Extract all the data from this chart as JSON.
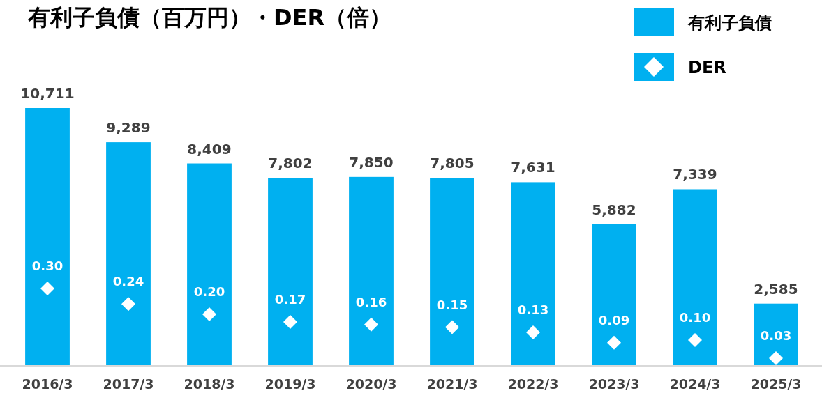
{
  "chart_data": {
    "type": "bar",
    "title": "有利子負債（百万円）・DER（倍）",
    "categories": [
      "2016/3",
      "2017/3",
      "2018/3",
      "2019/3",
      "2020/3",
      "2021/3",
      "2022/3",
      "2023/3",
      "2024/3",
      "2025/3"
    ],
    "series": [
      {
        "name": "有利子負債",
        "color": "#00b0f0",
        "values": [
          10711,
          9289,
          8409,
          7802,
          7850,
          7805,
          7631,
          5882,
          7339,
          2585
        ],
        "value_labels": [
          "10,711",
          "9,289",
          "8,409",
          "7,802",
          "7,850",
          "7,805",
          "7,631",
          "5,882",
          "7,339",
          "2,585"
        ]
      },
      {
        "name": "DER",
        "type": "scatter",
        "axis": "y2",
        "color": "#ffffff",
        "values": [
          0.3,
          0.24,
          0.2,
          0.17,
          0.16,
          0.15,
          0.13,
          0.09,
          0.1,
          0.03
        ],
        "value_labels": [
          "0.30",
          "0.24",
          "0.20",
          "0.17",
          "0.16",
          "0.15",
          "0.13",
          "0.09",
          "0.10",
          "0.03"
        ]
      }
    ],
    "marker": "diamond",
    "legend": "top right",
    "tick_labels": "x"
  }
}
